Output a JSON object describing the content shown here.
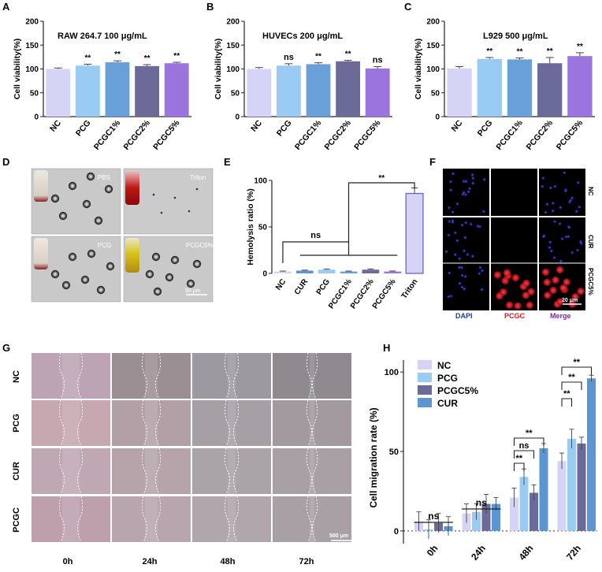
{
  "panel_letters": {
    "A": "A",
    "B": "B",
    "C": "C",
    "D": "D",
    "E": "E",
    "F": "F",
    "G": "G",
    "H": "H"
  },
  "colors": {
    "NC": "#d6d4f6",
    "PCG": "#99cbf3",
    "PCGC1": "#6aa0d8",
    "PCGC2": "#6c6a99",
    "PCGC5": "#9b74dd",
    "CUR": "#5b96d3",
    "errbar": "#444444"
  },
  "chart_data": [
    {
      "id": "A",
      "type": "bar",
      "title": "RAW 264.7    100 μg/mL",
      "ylabel": "Cell viability(%)",
      "ylim": [
        0,
        200
      ],
      "yticks": [
        0,
        50,
        100,
        150,
        200
      ],
      "categories": [
        "NC",
        "PCG",
        "PCGC1%",
        "PCGC2%",
        "PCGC5%"
      ],
      "values": [
        100,
        107,
        114,
        106,
        112
      ],
      "errors": [
        2,
        3,
        3,
        3,
        2
      ],
      "significance": [
        "",
        "**",
        "**",
        "**",
        "**"
      ]
    },
    {
      "id": "B",
      "type": "bar",
      "title": "HUVECs    200 μg/mL",
      "ylabel": "Cell viability(%)",
      "ylim": [
        0,
        200
      ],
      "yticks": [
        0,
        50,
        100,
        150,
        200
      ],
      "categories": [
        "NC",
        "PCG",
        "PCGC1%",
        "PCGC2%",
        "PCGC5%"
      ],
      "values": [
        100,
        107,
        110,
        116,
        101
      ],
      "errors": [
        3,
        4,
        3,
        2,
        4
      ],
      "significance": [
        "",
        "ns",
        "**",
        "**",
        "ns"
      ]
    },
    {
      "id": "C",
      "type": "bar",
      "title": "L929   500 μg/mL",
      "ylabel": "Cell viability(%)",
      "ylim": [
        0,
        200
      ],
      "yticks": [
        0,
        50,
        100,
        150,
        200
      ],
      "categories": [
        "NC",
        "PCG",
        "PCGC1%",
        "PCGC2%",
        "PCGC5%"
      ],
      "values": [
        101,
        121,
        120,
        112,
        127
      ],
      "errors": [
        4,
        3,
        3,
        12,
        7
      ],
      "significance": [
        "",
        "**",
        "**",
        "**",
        "**"
      ]
    },
    {
      "id": "E",
      "type": "bar",
      "ylabel": "Hemolysis ratio (%)",
      "ylim": [
        0,
        100
      ],
      "yticks": [
        0,
        50,
        100
      ],
      "categories": [
        "NC",
        "CUR",
        "PCG",
        "PCGC1%",
        "PCGC2%",
        "PCGC5%",
        "Triton"
      ],
      "values": [
        2,
        3,
        4,
        2,
        4,
        2,
        86
      ],
      "errors": [
        0.5,
        0.5,
        0.6,
        0.5,
        0.8,
        0.6,
        6
      ],
      "brackets": [
        {
          "from": 0,
          "to": 3,
          "label": "ns"
        },
        {
          "from": 3,
          "to": 6,
          "label": "**"
        }
      ]
    },
    {
      "id": "H",
      "type": "bar",
      "ylabel": "Cell migration rate (%)",
      "ylim": [
        -8,
        110
      ],
      "yticks": [
        0,
        50,
        100
      ],
      "categories": [
        "0h",
        "24h",
        "48h",
        "72h"
      ],
      "series": [
        {
          "name": "NC",
          "values": [
            6,
            11,
            21,
            44
          ],
          "errors": [
            6,
            6,
            6,
            5
          ]
        },
        {
          "name": "PCG",
          "values": [
            1,
            12,
            34,
            58
          ],
          "errors": [
            6,
            5,
            5,
            6
          ]
        },
        {
          "name": "PCGC5%",
          "values": [
            5,
            17,
            24,
            55
          ],
          "errors": [
            6,
            6,
            5,
            4
          ]
        },
        {
          "name": "CUR",
          "values": [
            3,
            17,
            52,
            96
          ],
          "errors": [
            6,
            4,
            3,
            2
          ]
        }
      ],
      "group_labels": [
        "ns",
        "ns"
      ],
      "brackets": [
        {
          "label": "**"
        },
        {
          "label": "ns"
        },
        {
          "label": "**"
        },
        {
          "label": "**"
        },
        {
          "label": "**"
        },
        {
          "label": "**"
        }
      ]
    }
  ],
  "panel_D": {
    "labels": [
      "PBS",
      "Triton",
      "PCG",
      "PCGC5%"
    ],
    "scalebar": "50 μm"
  },
  "panel_F": {
    "rows": [
      "NC",
      "CUR",
      "PCGC5%"
    ],
    "cols": [
      "DAPI",
      "PCGC",
      "Merge"
    ],
    "scalebar": "20 μm"
  },
  "panel_G": {
    "rows": [
      "NC",
      "PCG",
      "CUR",
      "PCGC"
    ],
    "cols": [
      "0h",
      "24h",
      "48h",
      "72h"
    ],
    "scalebar": "500 μm"
  }
}
